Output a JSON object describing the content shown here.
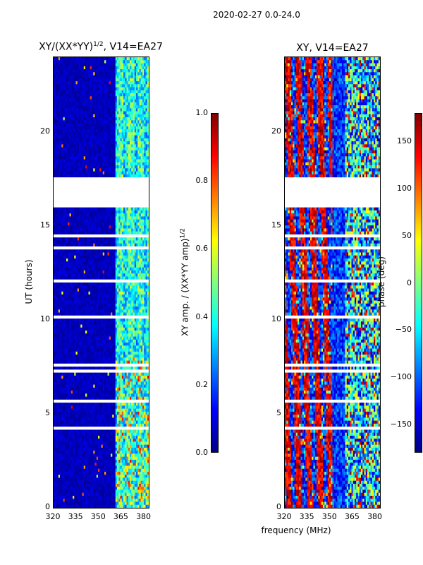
{
  "figure": {
    "suptitle": "2020-02-27 0.0-24.0"
  },
  "panels": [
    {
      "id": "amp",
      "title_base": "XY/(XX*YY)",
      "title_sup": "1/2",
      "title_suffix": ", V14=EA27",
      "ylabel": "UT (hours)",
      "xticks": [
        "320",
        "335",
        "350",
        "365",
        "380"
      ],
      "yticks": [
        "0",
        "5",
        "10",
        "15",
        "20"
      ],
      "colorbar": {
        "label_base": "XY amp. / (XX*YY amp)",
        "label_sup": "1/2",
        "ticks": [
          "0.0",
          "0.2",
          "0.4",
          "0.6",
          "0.8",
          "1.0"
        ],
        "range": [
          0.0,
          1.0
        ],
        "colormap": "jet"
      }
    },
    {
      "id": "phase",
      "title": "XY, V14=EA27",
      "xticks": [
        "320",
        "335",
        "350",
        "365",
        "380"
      ],
      "yticks": [
        "0",
        "5",
        "10",
        "15",
        "20"
      ],
      "colorbar": {
        "label": "phase (deg)",
        "ticks": [
          "−150",
          "−100",
          "−50",
          "0",
          "50",
          "100",
          "150"
        ],
        "range": [
          -180,
          180
        ],
        "colormap": "jet"
      }
    }
  ],
  "xlabel": "frequency (MHz)",
  "chart_data": [
    {
      "type": "heatmap",
      "title": "XY/(XX*YY)^1/2, V14=EA27",
      "xlabel": "frequency (MHz)",
      "ylabel": "UT (hours)",
      "xlim": [
        320,
        383
      ],
      "ylim": [
        0,
        24
      ],
      "xticks": [
        320,
        335,
        350,
        365,
        380
      ],
      "yticks": [
        0,
        5,
        10,
        15,
        20
      ],
      "zlim": [
        0.0,
        1.0
      ],
      "gap_hours": [
        16.0,
        17.6
      ],
      "band_high_freq_MHz": [
        360,
        383
      ],
      "typical_value_low_freq": 0.05,
      "typical_value_high_freq": 0.4
    },
    {
      "type": "heatmap",
      "title": "XY, V14=EA27",
      "xlabel": "frequency (MHz)",
      "ylabel": "UT (hours)",
      "xlim": [
        320,
        383
      ],
      "ylim": [
        0,
        24
      ],
      "xticks": [
        320,
        335,
        350,
        365,
        380
      ],
      "yticks": [
        0,
        5,
        10,
        15,
        20
      ],
      "zlim": [
        -180,
        180
      ],
      "zticks": [
        -150,
        -100,
        -50,
        0,
        50,
        100,
        150
      ],
      "gap_hours": [
        16.0,
        17.6
      ]
    }
  ]
}
